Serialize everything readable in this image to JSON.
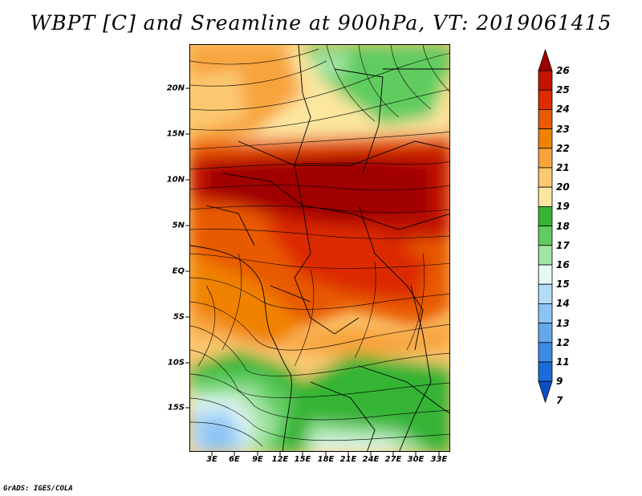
{
  "title": "WBPT [C] and Sreamline at 900hPa, VT: 2019061415",
  "credit": "GrADS: IGES/COLA",
  "map": {
    "lat_labels": [
      "20N",
      "15N",
      "10N",
      "5N",
      "EQ",
      "5S",
      "10S",
      "15S"
    ],
    "lon_labels": [
      "3E",
      "6E",
      "9E",
      "12E",
      "15E",
      "18E",
      "21E",
      "24E",
      "27E",
      "30E",
      "33E"
    ]
  },
  "colorbar": {
    "labels": [
      "26",
      "25",
      "24",
      "23",
      "22",
      "21",
      "20",
      "19",
      "18",
      "17",
      "16",
      "15",
      "14",
      "13",
      "12",
      "11",
      "9",
      "7"
    ],
    "colors": [
      "#a00000",
      "#c41400",
      "#dc2c00",
      "#e85a00",
      "#f08200",
      "#f8a43c",
      "#fcc870",
      "#fce6a0",
      "#34b434",
      "#60cc60",
      "#a4e4a4",
      "#e4f8f4",
      "#b4dcf8",
      "#8cc4f4",
      "#64a8ec",
      "#3c8ce4",
      "#1c6cd8",
      "#0c50c8"
    ]
  }
}
